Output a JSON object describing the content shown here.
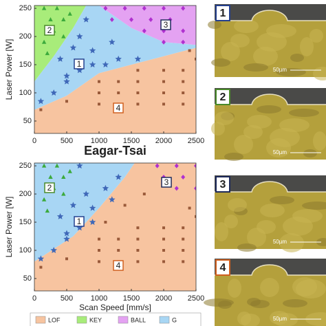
{
  "chart_data": [
    {
      "type": "scatter",
      "ylabel": "Laser Power [W]",
      "xlim": [
        0,
        2500
      ],
      "ylim": [
        28,
        255
      ],
      "xticks": [
        0,
        500,
        1000,
        1500,
        2000,
        2500
      ],
      "yticks": [
        50,
        100,
        150,
        200,
        250
      ],
      "regions": [
        {
          "name": "LOF",
          "color": "#f7c4a0",
          "x": [
            0,
            0,
            500,
            1000,
            1500,
            2000,
            2500,
            2500
          ],
          "y": [
            28,
            70,
            95,
            135,
            150,
            165,
            180,
            28
          ]
        },
        {
          "name": "KEY",
          "color": "#a8ec7a",
          "x": [
            0,
            0,
            800,
            600,
            300
          ],
          "y": [
            120,
            255,
            255,
            215,
            165
          ]
        },
        {
          "name": "BALL",
          "color": "#e4a2f2",
          "x": [
            1000,
            2500,
            2500,
            2000,
            1500
          ],
          "y": [
            255,
            255,
            185,
            190,
            215
          ]
        },
        {
          "name": "G",
          "color": "#a8d6f4",
          "x": [
            0,
            0,
            300,
            600,
            800,
            1000,
            1500,
            2000,
            2500,
            2500,
            2000,
            1500,
            1000,
            500
          ],
          "y": [
            70,
            120,
            165,
            215,
            255,
            255,
            215,
            190,
            185,
            180,
            165,
            150,
            135,
            95
          ]
        }
      ],
      "annotations": [
        "1",
        "2",
        "3",
        "4"
      ],
      "series": [
        {
          "name": "LOF",
          "marker": "square",
          "color": "#9a5a3a",
          "x": [
            100,
            500,
            1000,
            1000,
            1000,
            1300,
            1300,
            1300,
            1600,
            1600,
            1600,
            1600,
            2000,
            2000,
            2000,
            2000,
            2300,
            2300,
            2300,
            2300,
            2500,
            2400
          ],
          "y": [
            70,
            85,
            80,
            100,
            120,
            80,
            100,
            120,
            80,
            100,
            120,
            140,
            80,
            100,
            120,
            140,
            80,
            100,
            120,
            140,
            160,
            175
          ]
        },
        {
          "name": "KEY",
          "marker": "triangle",
          "color": "#3caa3c",
          "x": [
            150,
            350,
            250,
            450,
            300,
            550,
            150,
            200,
            450
          ],
          "y": [
            250,
            250,
            230,
            230,
            210,
            240,
            190,
            170,
            200
          ]
        },
        {
          "name": "BALL",
          "marker": "diamond",
          "color": "#b030d0",
          "x": [
            1100,
            1400,
            1700,
            2000,
            2300,
            1200,
            1500,
            1800,
            2100,
            1700,
            2000,
            2300,
            2000,
            2300
          ],
          "y": [
            250,
            250,
            250,
            250,
            250,
            230,
            230,
            230,
            230,
            210,
            210,
            210,
            190,
            190
          ]
        },
        {
          "name": "G",
          "marker": "star",
          "color": "#3f68b8",
          "x": [
            100,
            300,
            500,
            500,
            700,
            900,
            1100,
            1300,
            1600,
            700,
            900,
            1200,
            400,
            800,
            600
          ],
          "y": [
            85,
            100,
            120,
            130,
            140,
            150,
            150,
            160,
            160,
            200,
            175,
            190,
            160,
            230,
            180
          ]
        }
      ]
    },
    {
      "type": "scatter",
      "title": "Eagar-Tsai",
      "xlabel": "Scan Speed [mm/s]",
      "ylabel": "Laser Power [W]",
      "xlim": [
        0,
        2500
      ],
      "ylim": [
        28,
        255
      ],
      "xticks": [
        0,
        500,
        1000,
        1500,
        2000,
        2500
      ],
      "yticks": [
        50,
        100,
        150,
        200,
        250
      ],
      "regions": [
        {
          "name": "LOF",
          "color": "#f7c4a0",
          "x": [
            0,
            0,
            600,
            1000,
            1400,
            1550,
            2500,
            2500
          ],
          "y": [
            28,
            80,
            125,
            175,
            230,
            255,
            255,
            28
          ]
        },
        {
          "name": "G",
          "color": "#a8d6f4",
          "x": [
            0,
            0,
            1550,
            1400,
            1000,
            600
          ],
          "y": [
            80,
            255,
            255,
            230,
            175,
            125
          ]
        }
      ],
      "annotations": [
        "2",
        "1",
        "3",
        "4"
      ],
      "series": [
        {
          "name": "LOF",
          "marker": "square",
          "color": "#9a5a3a",
          "x": [
            100,
            500,
            1000,
            1000,
            1000,
            1300,
            1300,
            1300,
            1600,
            1600,
            1600,
            1600,
            2000,
            2000,
            2000,
            2000,
            2300,
            2300,
            2300,
            2300,
            1100,
            1400,
            1700,
            2500,
            2400
          ],
          "y": [
            70,
            85,
            80,
            100,
            120,
            80,
            100,
            120,
            80,
            100,
            120,
            140,
            80,
            100,
            120,
            140,
            80,
            100,
            120,
            140,
            150,
            180,
            200,
            160,
            175
          ]
        },
        {
          "name": "KEY",
          "marker": "triangle",
          "color": "#3caa3c",
          "x": [
            150,
            350,
            250,
            450,
            300,
            550,
            150,
            200,
            450
          ],
          "y": [
            250,
            250,
            230,
            230,
            210,
            240,
            190,
            170,
            200
          ]
        },
        {
          "name": "BALL",
          "marker": "diamond",
          "color": "#b030d0",
          "x": [
            1900,
            2200,
            2500,
            2000,
            2300,
            2200,
            2500
          ],
          "y": [
            250,
            250,
            250,
            230,
            230,
            210,
            210
          ]
        },
        {
          "name": "G",
          "marker": "star",
          "color": "#3f68b8",
          "x": [
            100,
            300,
            500,
            500,
            700,
            900,
            400,
            600,
            800,
            1100,
            1300,
            700,
            900,
            1200
          ],
          "y": [
            85,
            100,
            120,
            130,
            140,
            150,
            160,
            180,
            200,
            210,
            230,
            250,
            175,
            190
          ]
        }
      ]
    }
  ],
  "micrographs": [
    {
      "label": "1",
      "scale": "50µm",
      "color": "#24408e"
    },
    {
      "label": "2",
      "scale": "50µm",
      "color": "#4a8a2a"
    },
    {
      "label": "3",
      "scale": "50µm",
      "color": "#1e2a5a"
    },
    {
      "label": "4",
      "scale": "50µm",
      "color": "#d06020"
    }
  ]
}
